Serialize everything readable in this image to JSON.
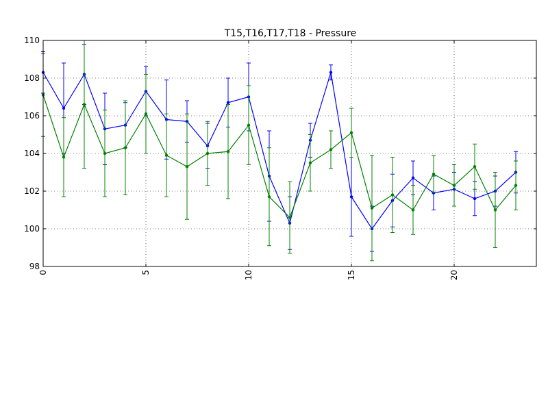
{
  "chart_data": {
    "type": "line",
    "title": "T15,T16,T17,T18 - Pressure",
    "xlabel": "",
    "ylabel": "",
    "xlim": [
      0,
      24
    ],
    "ylim": [
      98,
      110
    ],
    "grid": true,
    "xticks": [
      0,
      5,
      10,
      15,
      20
    ],
    "yticks": [
      98,
      100,
      102,
      104,
      106,
      108,
      110
    ],
    "xtick_labels": [
      "0",
      "5",
      "10",
      "15",
      "20"
    ],
    "ytick_labels": [
      "98",
      "100",
      "102",
      "104",
      "106",
      "108",
      "110"
    ],
    "x": [
      0,
      1,
      2,
      3,
      4,
      5,
      6,
      7,
      8,
      9,
      10,
      11,
      12,
      13,
      14,
      15,
      16,
      17,
      18,
      19,
      20,
      21,
      22,
      23
    ],
    "series": [
      {
        "color": "#0000ff",
        "values": [
          108.3,
          106.4,
          108.2,
          105.3,
          105.5,
          107.3,
          105.8,
          105.7,
          104.4,
          106.7,
          107.0,
          102.8,
          100.3,
          104.7,
          108.3,
          101.7,
          100.0,
          101.5,
          102.7,
          101.9,
          102.1,
          101.6,
          102.0,
          103.0
        ],
        "errors": [
          1.1,
          2.4,
          1.6,
          1.9,
          1.2,
          1.3,
          2.1,
          1.1,
          1.2,
          1.3,
          1.8,
          2.4,
          1.4,
          0.9,
          0.4,
          2.1,
          1.2,
          1.4,
          0.9,
          0.9,
          0.9,
          0.9,
          0.8,
          1.1
        ]
      },
      {
        "color": "#008000",
        "values": [
          107.1,
          103.8,
          106.6,
          104.0,
          104.3,
          106.1,
          103.9,
          103.3,
          104.0,
          104.1,
          105.5,
          101.7,
          100.6,
          103.5,
          104.2,
          105.1,
          101.1,
          101.8,
          101.0,
          102.9,
          102.3,
          103.3,
          101.0,
          102.3
        ],
        "errors": [
          2.2,
          2.1,
          3.4,
          2.3,
          2.5,
          2.1,
          2.2,
          2.8,
          1.7,
          2.5,
          2.1,
          2.6,
          1.9,
          1.5,
          1.0,
          1.3,
          2.8,
          2.0,
          1.3,
          1.0,
          1.1,
          1.2,
          2.0,
          1.3
        ]
      }
    ]
  }
}
